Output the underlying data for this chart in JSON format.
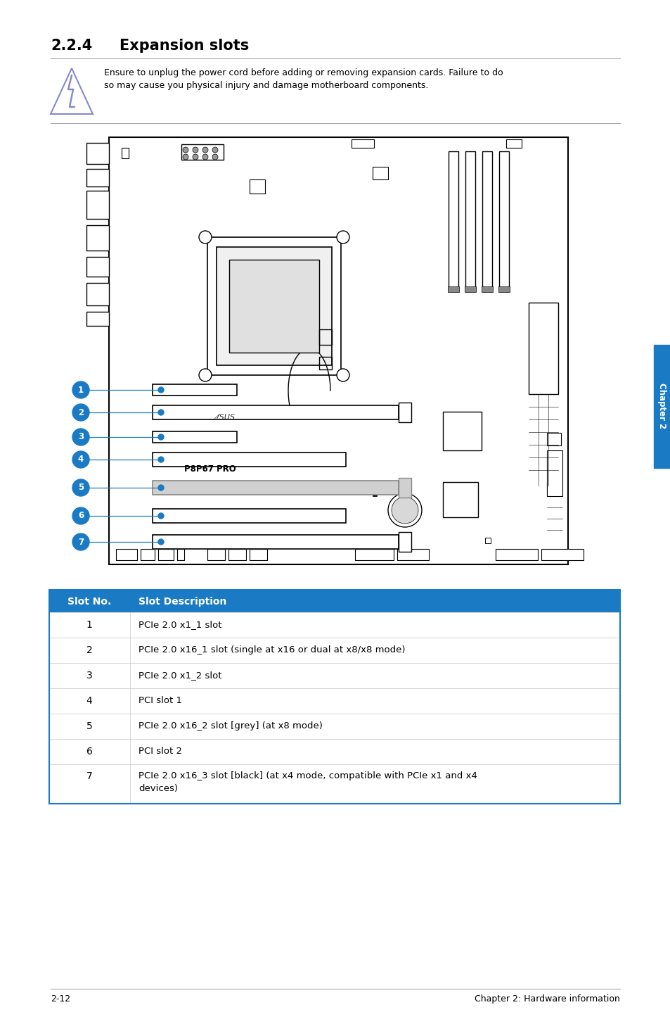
{
  "title_num": "2.2.4",
  "title_text": "Expansion slots",
  "warning_text": "Ensure to unplug the power cord before adding or removing expansion cards. Failure to do\nso may cause you physical injury and damage motherboard components.",
  "table_header": [
    "Slot No.",
    "Slot Description"
  ],
  "table_header_bg": "#1a7bc4",
  "table_header_color": "#ffffff",
  "table_rows": [
    [
      "1",
      "PCIe 2.0 x1_1 slot"
    ],
    [
      "2",
      "PCIe 2.0 x16_1 slot (single at x16 or dual at x8/x8 mode)"
    ],
    [
      "3",
      "PCIe 2.0 x1_2 slot"
    ],
    [
      "4",
      "PCI slot 1"
    ],
    [
      "5",
      "PCIe 2.0 x16_2 slot [grey] (at x8 mode)"
    ],
    [
      "6",
      "PCI slot 2"
    ],
    [
      "7",
      "PCIe 2.0 x16_3 slot [black] (at x4 mode, compatible with PCIe x1 and x4\ndevices)"
    ]
  ],
  "table_row_bg": "#ffffff",
  "table_border_color": "#cccccc",
  "footer_left": "2-12",
  "footer_right": "Chapter 2: Hardware information",
  "slot_circle_color": "#1a7bc4",
  "slot_line_color": "#1a7bc4",
  "bg_color": "#ffffff",
  "chapter_tab_color": "#1a7bc4"
}
